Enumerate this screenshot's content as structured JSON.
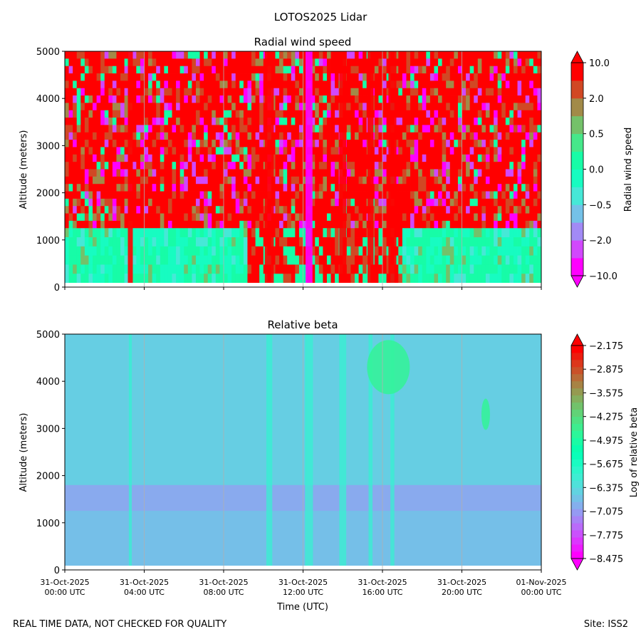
{
  "suptitle": "LOTOS2025 Lidar",
  "footer": {
    "left": "REAL TIME DATA, NOT CHECKED FOR QUALITY",
    "right": "Site: ISS2"
  },
  "chart_data": [
    {
      "type": "heatmap",
      "title": "Radial wind speed",
      "ylabel": "Altitude (meters)",
      "xlabel": "",
      "xlim": [
        "2025-10-31T00:00Z",
        "2025-11-01T00:00Z"
      ],
      "ylim": [
        0,
        5000
      ],
      "yticks": [
        0,
        1000,
        2000,
        3000,
        4000,
        5000
      ],
      "xticks_shown": false,
      "grid": "vertical lines at x ticks",
      "colormap": "rainbow",
      "colorbar": {
        "label": "Radial wind speed",
        "tick_labels": [
          "10.0",
          "2.0",
          "0.5",
          "0.0",
          "−0.5",
          "−2.0",
          "−10.0"
        ],
        "extend": "both",
        "levels": 12
      },
      "features": [
        {
          "desc": "boundary layer top",
          "altitude_m": 1250
        },
        {
          "desc": "strong positive column",
          "time_utc": "10:20"
        },
        {
          "desc": "strong negative column",
          "time_utc": "12:20"
        },
        {
          "desc": "strong positive columns",
          "time_utc": [
            "14:00",
            "15:30",
            "16:30"
          ]
        }
      ]
    },
    {
      "type": "heatmap",
      "title": "Relative beta",
      "ylabel": "Altitude (meters)",
      "xlabel": "Time (UTC)",
      "xlim": [
        "2025-10-31T00:00Z",
        "2025-11-01T00:00Z"
      ],
      "ylim": [
        0,
        5000
      ],
      "yticks": [
        0,
        1000,
        2000,
        3000,
        4000,
        5000
      ],
      "xticks": [
        {
          "date": "31-Oct-2025",
          "time": "00:00 UTC"
        },
        {
          "date": "31-Oct-2025",
          "time": "04:00 UTC"
        },
        {
          "date": "31-Oct-2025",
          "time": "08:00 UTC"
        },
        {
          "date": "31-Oct-2025",
          "time": "12:00 UTC"
        },
        {
          "date": "31-Oct-2025",
          "time": "16:00 UTC"
        },
        {
          "date": "31-Oct-2025",
          "time": "20:00 UTC"
        },
        {
          "date": "01-Nov-2025",
          "time": "00:00 UTC"
        }
      ],
      "grid": "vertical lines at x ticks",
      "colormap": "rainbow",
      "colorbar": {
        "label": "Log of relative beta",
        "tick_labels": [
          "−2.175",
          "−2.875",
          "−3.575",
          "−4.275",
          "−4.975",
          "−5.675",
          "−6.375",
          "−7.075",
          "−7.775",
          "−8.475"
        ],
        "extend": "both",
        "range": [
          -9.0,
          -2.175
        ]
      },
      "features": [
        {
          "desc": "background",
          "log_beta": -7.1
        },
        {
          "desc": "boundary layer",
          "altitude_m": [
            1200,
            1800
          ],
          "log_beta": -7.8
        },
        {
          "desc": "cloud layer",
          "time_utc": [
            "15:00",
            "18:00"
          ],
          "altitude_m": [
            3600,
            5000
          ],
          "log_beta": -5.0
        },
        {
          "desc": "cloud patch",
          "time_utc": "21:00",
          "altitude_m": [
            3100,
            3500
          ],
          "log_beta": -5.3
        }
      ]
    }
  ]
}
